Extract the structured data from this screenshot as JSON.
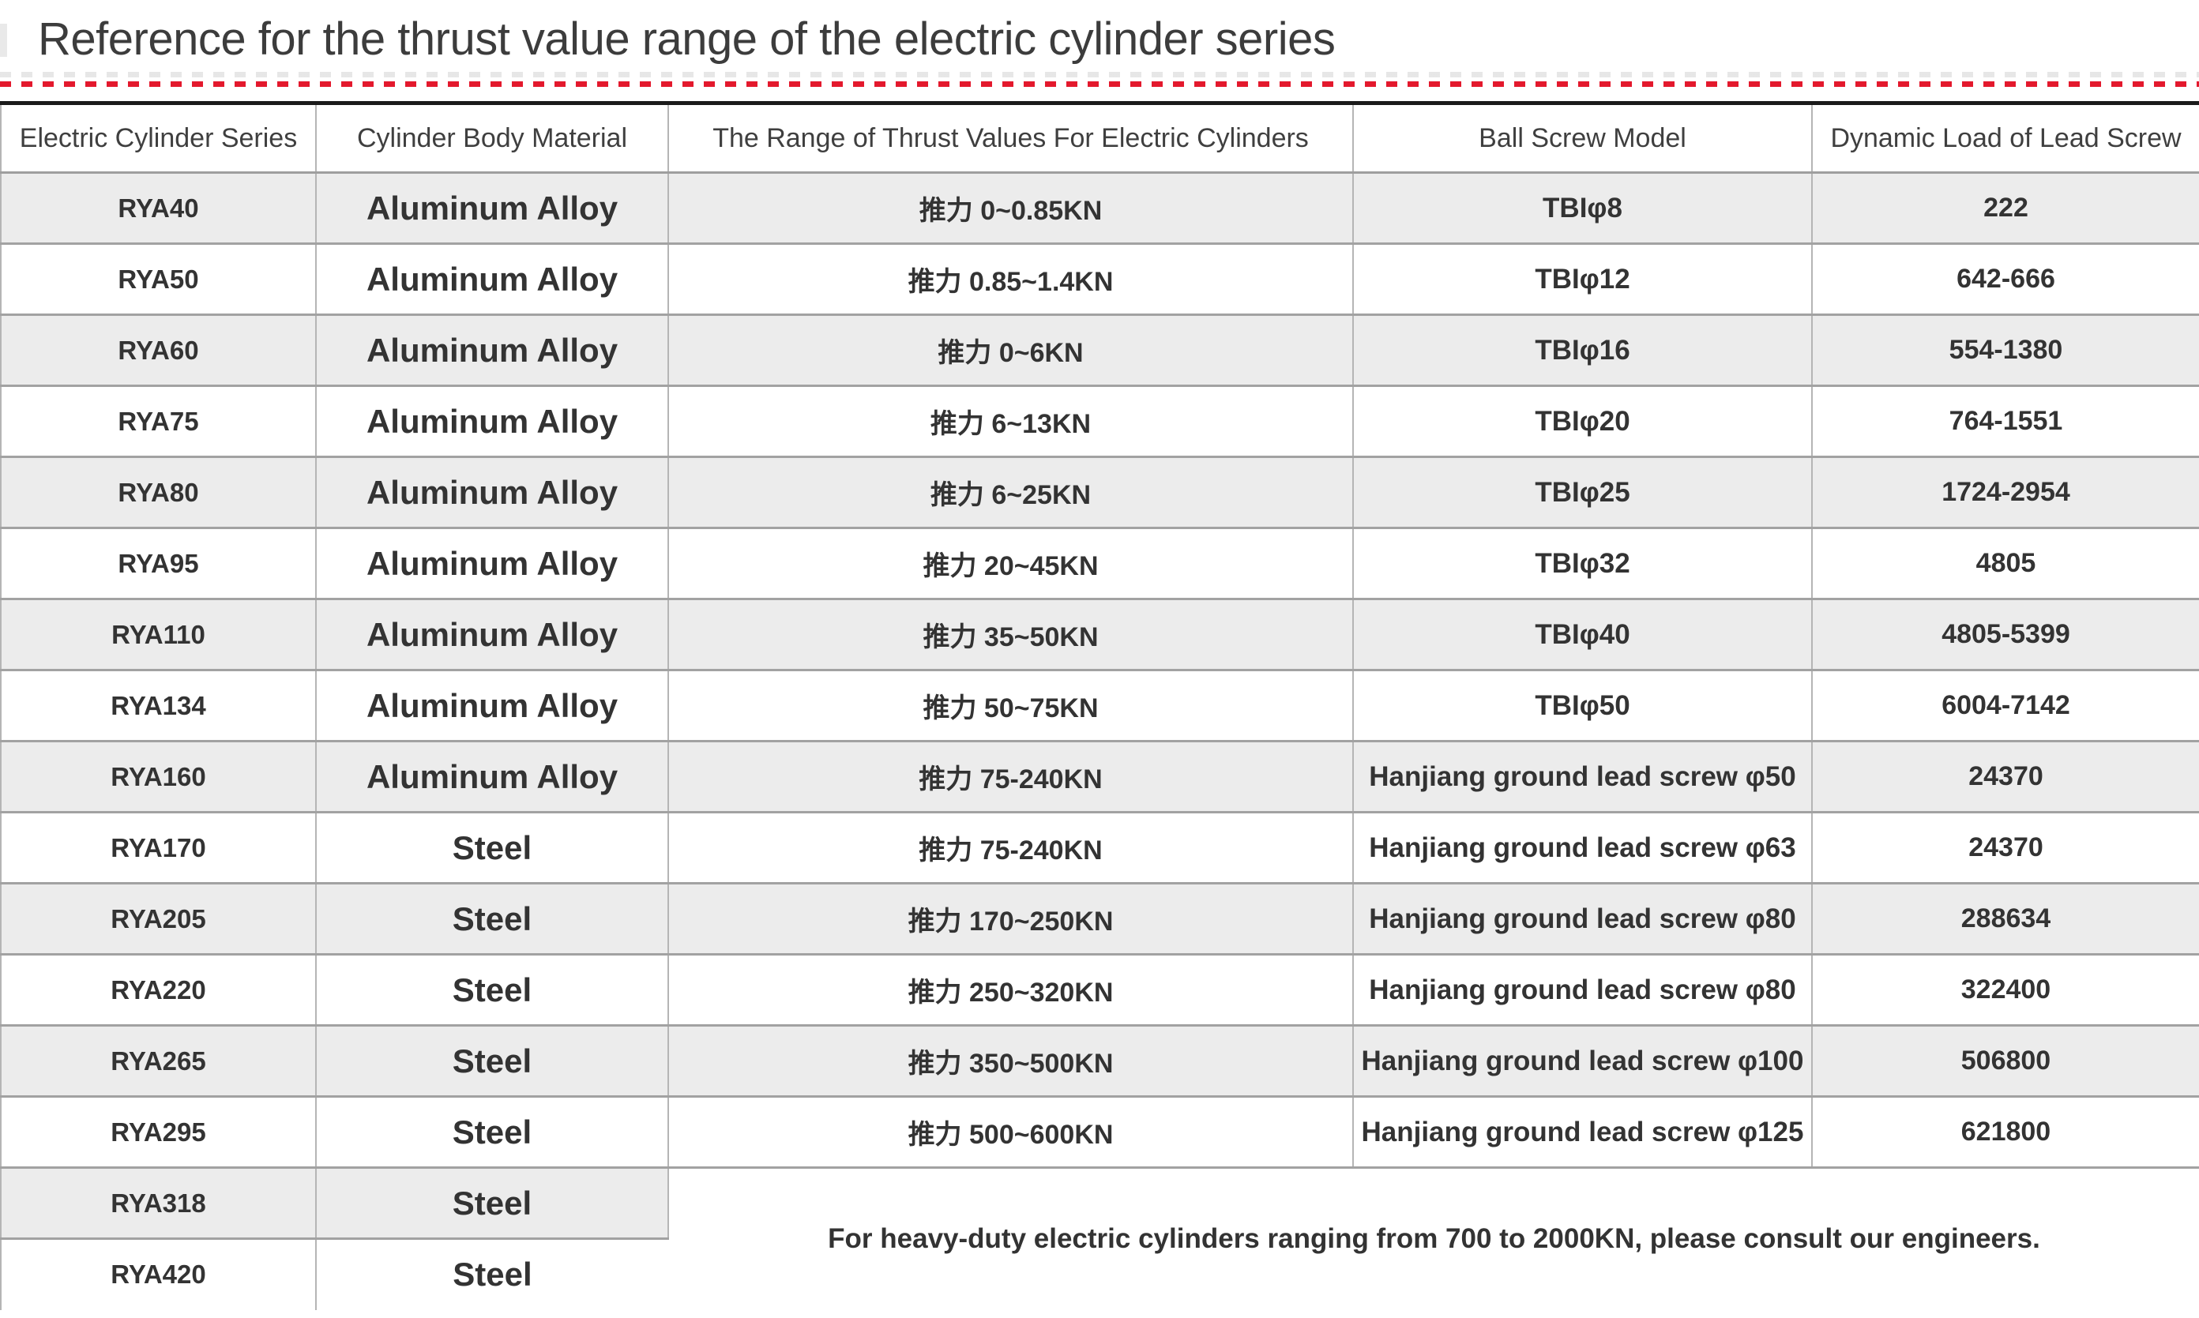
{
  "page": {
    "title": "Reference for the thrust value range of the electric cylinder series"
  },
  "colors": {
    "accent_red_dash": "#e3192d",
    "row_alt_gray": "#ececec",
    "table_top_border": "#1b1b1b",
    "text": "#333333"
  },
  "table": {
    "columns": [
      "Electric Cylinder Series",
      "Cylinder Body Material",
      "The Range of Thrust Values For Electric Cylinders",
      "Ball Screw Model",
      "Dynamic Load of Lead Screw"
    ],
    "rows": [
      {
        "series": "RYA40",
        "material": "Aluminum Alloy",
        "thrust": "推力 0~0.85KN",
        "screw": "TBIφ8",
        "load": "222"
      },
      {
        "series": "RYA50",
        "material": "Aluminum Alloy",
        "thrust": "推力 0.85~1.4KN",
        "screw": "TBIφ12",
        "load": "642-666"
      },
      {
        "series": "RYA60",
        "material": "Aluminum Alloy",
        "thrust": "推力 0~6KN",
        "screw": "TBIφ16",
        "load": "554-1380"
      },
      {
        "series": "RYA75",
        "material": "Aluminum Alloy",
        "thrust": "推力 6~13KN",
        "screw": "TBIφ20",
        "load": "764-1551"
      },
      {
        "series": "RYA80",
        "material": "Aluminum Alloy",
        "thrust": "推力 6~25KN",
        "screw": "TBIφ25",
        "load": "1724-2954"
      },
      {
        "series": "RYA95",
        "material": "Aluminum Alloy",
        "thrust": "推力 20~45KN",
        "screw": "TBIφ32",
        "load": "4805"
      },
      {
        "series": "RYA110",
        "material": "Aluminum Alloy",
        "thrust": "推力 35~50KN",
        "screw": "TBIφ40",
        "load": "4805-5399"
      },
      {
        "series": "RYA134",
        "material": "Aluminum Alloy",
        "thrust": "推力 50~75KN",
        "screw": "TBIφ50",
        "load": "6004-7142"
      },
      {
        "series": "RYA160",
        "material": "Aluminum Alloy",
        "thrust": "推力 75-240KN",
        "screw": "Hanjiang ground lead screw φ50",
        "load": "24370"
      },
      {
        "series": "RYA170",
        "material": "Steel",
        "thrust": "推力 75-240KN",
        "screw": "Hanjiang ground lead screw φ63",
        "load": "24370"
      },
      {
        "series": "RYA205",
        "material": "Steel",
        "thrust": "推力 170~250KN",
        "screw": "Hanjiang ground lead screw φ80",
        "load": "288634"
      },
      {
        "series": "RYA220",
        "material": "Steel",
        "thrust": "推力 250~320KN",
        "screw": "Hanjiang ground lead screw φ80",
        "load": "322400"
      },
      {
        "series": "RYA265",
        "material": "Steel",
        "thrust": "推力 350~500KN",
        "screw": "Hanjiang ground lead screw φ100",
        "load": "506800"
      },
      {
        "series": "RYA295",
        "material": "Steel",
        "thrust": "推力 500~600KN",
        "screw": "Hanjiang ground lead screw φ125",
        "load": "621800"
      },
      {
        "series": "RYA318",
        "material": "Steel"
      },
      {
        "series": "RYA420",
        "material": "Steel"
      }
    ],
    "merged_note": "For heavy-duty electric cylinders ranging from 700 to 2000KN, please consult our engineers."
  }
}
